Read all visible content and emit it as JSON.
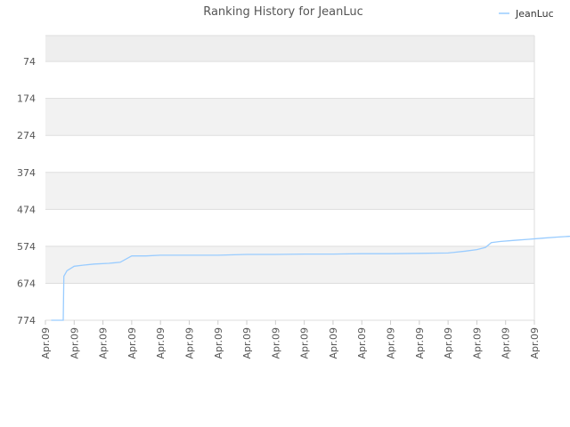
{
  "chart_data": {
    "type": "line",
    "title": "Ranking History for JeanLuc",
    "xlabel": "",
    "ylabel": "",
    "y_inverted": true,
    "ylim": [
      774,
      4
    ],
    "y_ticks": [
      "74",
      "174",
      "274",
      "374",
      "474",
      "574",
      "674",
      "774"
    ],
    "x_ticks": [
      "Apr.09",
      "Apr.09",
      "Apr.09",
      "Apr.09",
      "Apr.09",
      "Apr.09",
      "Apr.09",
      "Apr.09",
      "Apr.09",
      "Apr.09",
      "Apr.09",
      "Apr.09",
      "Apr.09",
      "Apr.09",
      "Apr.09",
      "Apr.09",
      "Apr.09",
      "Apr.09"
    ],
    "grid": true,
    "legend_position": "top-right",
    "background_bands": [
      "#eeeeee",
      "#ffffff",
      "#f2f2f2",
      "#ffffff",
      "#f2f2f2",
      "#ffffff",
      "#f2f2f2",
      "#ffffff"
    ],
    "series": [
      {
        "name": "JeanLuc",
        "color": "#99ccff",
        "points": [
          [
            0.2,
            774
          ],
          [
            0.55,
            774
          ],
          [
            0.62,
            774
          ],
          [
            0.64,
            655
          ],
          [
            0.75,
            640
          ],
          [
            1.0,
            628
          ],
          [
            1.3,
            625
          ],
          [
            1.7,
            622
          ],
          [
            2.2,
            620
          ],
          [
            2.6,
            617
          ],
          [
            3.0,
            600
          ],
          [
            3.5,
            600
          ],
          [
            4.0,
            598
          ],
          [
            5.0,
            598
          ],
          [
            6.0,
            598
          ],
          [
            7.0,
            596
          ],
          [
            8.0,
            596
          ],
          [
            9.0,
            595
          ],
          [
            10.0,
            595
          ],
          [
            11.0,
            594
          ],
          [
            12.0,
            594
          ],
          [
            13.0,
            593
          ],
          [
            14.0,
            592
          ],
          [
            14.6,
            587
          ],
          [
            15.0,
            583
          ],
          [
            15.3,
            577
          ],
          [
            15.5,
            564
          ],
          [
            15.8,
            561
          ],
          [
            16.3,
            558
          ],
          [
            16.8,
            555
          ],
          [
            17.3,
            552
          ],
          [
            17.8,
            549
          ],
          [
            18.2,
            547
          ],
          [
            18.6,
            545
          ],
          [
            19.0,
            542
          ],
          [
            19.3,
            540
          ]
        ]
      }
    ]
  }
}
